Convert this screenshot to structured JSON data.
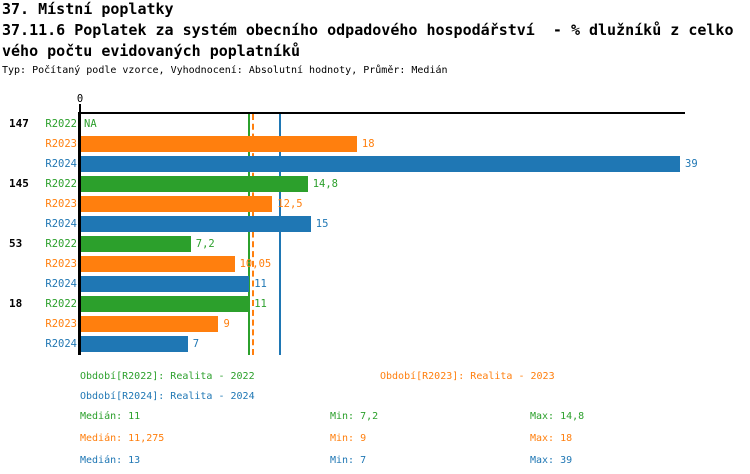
{
  "header": {
    "title_line1": "37. Místní poplatky",
    "title_line2": "37.11.6 Poplatek za systém obecního odpadového hospodářství  - % dlužníků z celko",
    "title_line3": "vého počtu evidovaných poplatníků",
    "subtitle": "Typ: Počítaný podle vzorce, Vyhodnocení: Absolutní hodnoty, Průměr: Medián"
  },
  "colors": {
    "R2022": "#2ca02c",
    "R2023": "#ff7f0e",
    "R2024": "#1f77b4",
    "axis": "#000000",
    "background": "#ffffff"
  },
  "chart_data": {
    "type": "bar",
    "orientation": "horizontal",
    "xlim": [
      0,
      39
    ],
    "axis_zero_label": "0",
    "na_label": "NA",
    "series_order": [
      "R2022",
      "R2023",
      "R2024"
    ],
    "groups": [
      {
        "label": "147",
        "bars": [
          {
            "series": "R2022",
            "value": null,
            "display": "NA"
          },
          {
            "series": "R2023",
            "value": 18,
            "display": "18"
          },
          {
            "series": "R2024",
            "value": 39,
            "display": "39"
          }
        ]
      },
      {
        "label": "145",
        "bars": [
          {
            "series": "R2022",
            "value": 14.8,
            "display": "14,8"
          },
          {
            "series": "R2023",
            "value": 12.5,
            "display": "12,5"
          },
          {
            "series": "R2024",
            "value": 15,
            "display": "15"
          }
        ]
      },
      {
        "label": "53",
        "bars": [
          {
            "series": "R2022",
            "value": 7.2,
            "display": "7,2"
          },
          {
            "series": "R2023",
            "value": 10.05,
            "display": "10,05"
          },
          {
            "series": "R2024",
            "value": 11,
            "display": "11"
          }
        ]
      },
      {
        "label": "18",
        "bars": [
          {
            "series": "R2022",
            "value": 11,
            "display": "11"
          },
          {
            "series": "R2023",
            "value": 9,
            "display": "9"
          },
          {
            "series": "R2024",
            "value": 7,
            "display": "7"
          }
        ]
      }
    ],
    "median_lines": [
      {
        "series": "R2022",
        "value": 11,
        "style": "solid"
      },
      {
        "series": "R2023",
        "value": 11.275,
        "style": "dashed"
      },
      {
        "series": "R2024",
        "value": 13,
        "style": "solid"
      }
    ]
  },
  "legend": [
    {
      "series": "R2022",
      "label": "Období[R2022]: Realita - 2022"
    },
    {
      "series": "R2023",
      "label": "Období[R2023]: Realita - 2023"
    },
    {
      "series": "R2024",
      "label": "Období[R2024]: Realita - 2024"
    }
  ],
  "stats": [
    {
      "series": "R2022",
      "median": "Medián: 11",
      "min": "Min: 7,2",
      "max": "Max: 14,8"
    },
    {
      "series": "R2023",
      "median": "Medián: 11,275",
      "min": "Min: 9",
      "max": "Max: 18"
    },
    {
      "series": "R2024",
      "median": "Medián: 13",
      "min": "Min: 7",
      "max": "Max: 39"
    }
  ]
}
